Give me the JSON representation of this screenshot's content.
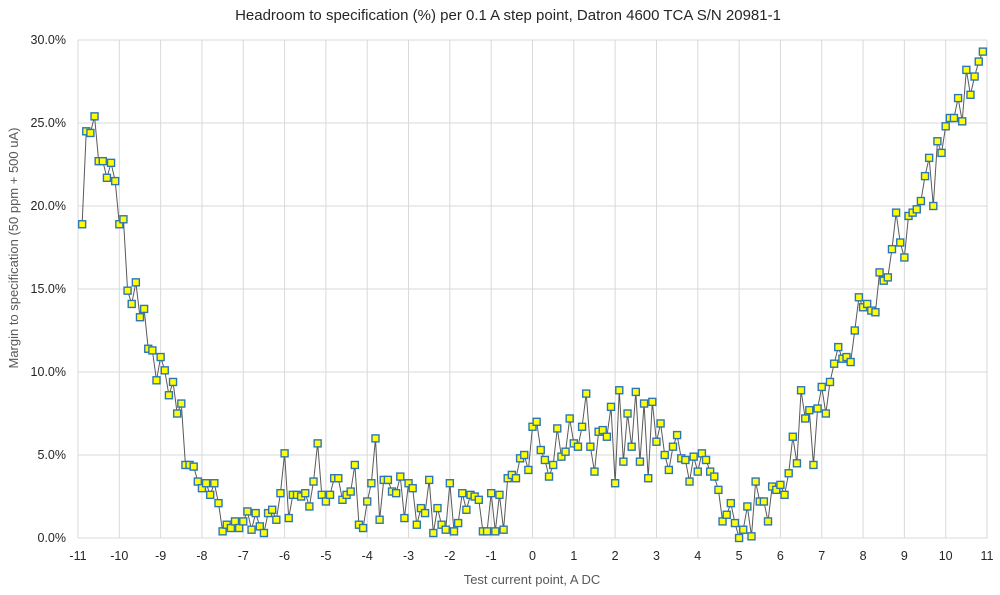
{
  "chart_data": {
    "type": "line",
    "title": "Headroom to specification (%) per 0.1 A step point, Datron 4600 TCA S/N 20981-1",
    "xlabel": "Test current point, A DC",
    "ylabel": "Margin to specification (50 ppm + 500 uA)",
    "xlim": [
      -11,
      11
    ],
    "ylim": [
      0,
      30
    ],
    "grid": true,
    "legend": "none",
    "marker": "square",
    "marker_fill": "#ffff00",
    "marker_edge": "#2e75b6",
    "line_color": "#595959",
    "x_tick_labels": [
      "-11",
      "-10",
      "-9",
      "-8",
      "-7",
      "-6",
      "-5",
      "-4",
      "-3",
      "-2",
      "-1",
      "0",
      "1",
      "2",
      "3",
      "4",
      "5",
      "6",
      "7",
      "8",
      "9",
      "10",
      "11"
    ],
    "y_tick_labels": [
      "0.0%",
      "5.0%",
      "10.0%",
      "15.0%",
      "20.0%",
      "25.0%",
      "30.0%"
    ],
    "x_start": -10.9,
    "x_step": 0.1,
    "y_unit": "%",
    "values": [
      18.9,
      24.5,
      24.4,
      25.4,
      22.7,
      22.7,
      21.7,
      22.6,
      21.5,
      18.9,
      19.2,
      14.9,
      14.1,
      15.4,
      13.3,
      13.8,
      11.4,
      11.3,
      9.5,
      10.9,
      10.1,
      8.6,
      9.4,
      7.5,
      8.1,
      4.4,
      4.4,
      4.3,
      3.4,
      3.0,
      3.3,
      2.6,
      3.3,
      2.1,
      0.4,
      0.8,
      0.6,
      1.0,
      0.6,
      1.0,
      1.6,
      0.5,
      1.5,
      0.7,
      0.3,
      1.5,
      1.7,
      1.1,
      2.7,
      5.1,
      1.2,
      2.6,
      2.6,
      2.5,
      2.7,
      1.9,
      3.4,
      5.7,
      2.6,
      2.2,
      2.6,
      3.6,
      3.6,
      2.3,
      2.6,
      2.8,
      4.4,
      0.8,
      0.6,
      2.2,
      3.3,
      6.0,
      1.1,
      3.5,
      3.5,
      2.8,
      2.7,
      3.7,
      1.2,
      3.3,
      3.0,
      0.8,
      1.8,
      1.5,
      3.5,
      0.3,
      1.8,
      0.8,
      0.5,
      3.3,
      0.4,
      0.9,
      2.7,
      1.7,
      2.6,
      2.5,
      2.3,
      0.4,
      0.4,
      2.7,
      0.4,
      2.6,
      0.5,
      3.6,
      3.8,
      3.6,
      4.8,
      5.0,
      4.1,
      6.7,
      7.0,
      5.3,
      4.7,
      3.7,
      4.4,
      6.6,
      4.9,
      5.2,
      7.2,
      5.7,
      5.5,
      6.7,
      8.7,
      5.5,
      4.0,
      6.4,
      6.5,
      6.1,
      7.9,
      3.3,
      8.9,
      4.6,
      7.5,
      5.5,
      8.8,
      4.6,
      8.1,
      3.6,
      8.2,
      5.8,
      6.9,
      5.0,
      4.1,
      5.5,
      6.2,
      4.8,
      4.7,
      3.4,
      4.9,
      4.0,
      5.1,
      4.7,
      4.0,
      3.7,
      2.9,
      1.0,
      1.4,
      2.1,
      0.9,
      0.0,
      0.5,
      1.9,
      0.1,
      3.4,
      2.2,
      2.2,
      1.0,
      3.1,
      2.9,
      3.2,
      2.6,
      3.9,
      6.1,
      4.5,
      8.9,
      7.2,
      7.7,
      4.4,
      7.8,
      9.1,
      7.5,
      9.4,
      10.5,
      11.5,
      10.8,
      10.9,
      10.6,
      12.5,
      14.5,
      13.9,
      14.1,
      13.7,
      13.6,
      16.0,
      15.5,
      15.7,
      17.4,
      19.6,
      17.8,
      16.9,
      19.4,
      19.6,
      19.8,
      20.3,
      21.8,
      22.9,
      20.0,
      23.9,
      23.2,
      24.8,
      25.3,
      25.3,
      26.5,
      25.1,
      28.2,
      26.7,
      27.8,
      28.7,
      29.3
    ]
  }
}
